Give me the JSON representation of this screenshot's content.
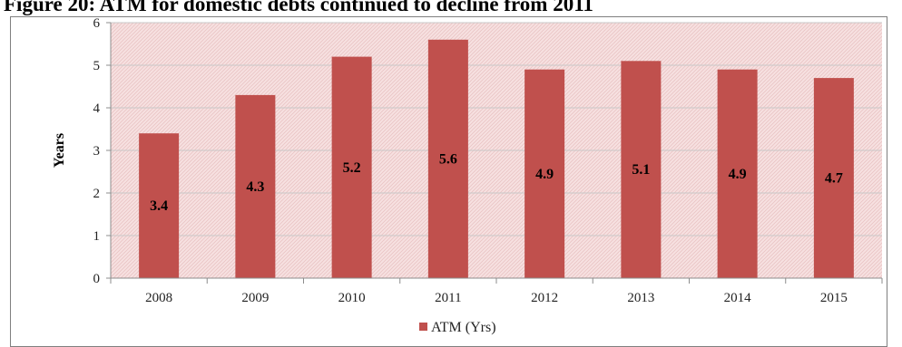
{
  "figure": {
    "title": "Figure 20: ATM for domestic debts continued to decline from 2011"
  },
  "colors": {
    "bar": "#c0504d",
    "plot_bg": "#f7e1e1",
    "hatch": "#e9c4c4",
    "grid": "#c8c8c8",
    "axis": "#8c8c8c"
  },
  "chart_data": {
    "type": "bar",
    "title": "",
    "xlabel": "",
    "ylabel": "Years",
    "ylim": [
      0,
      6
    ],
    "yticks": [
      0,
      1,
      2,
      3,
      4,
      5,
      6
    ],
    "grid": true,
    "legend": "bottom-center",
    "categories": [
      "2008",
      "2009",
      "2010",
      "2011",
      "2012",
      "2013",
      "2014",
      "2015"
    ],
    "series": [
      {
        "name": "ATM (Yrs)",
        "values": [
          3.4,
          4.3,
          5.2,
          5.6,
          4.9,
          5.1,
          4.9,
          4.7
        ],
        "labels": [
          "3.4",
          "4.3",
          "5.2",
          "5.6",
          "4.9",
          "5.1",
          "4.9",
          "4.7"
        ]
      }
    ]
  }
}
